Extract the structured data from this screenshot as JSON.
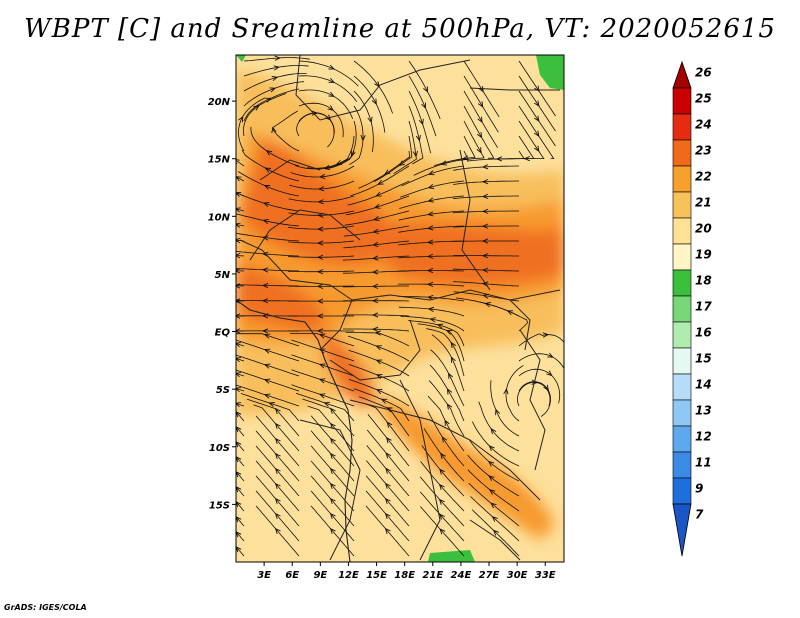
{
  "title": "WBPT [C] and Sreamline at 500hPa, VT: 2020052615",
  "credit": "GrADS: IGES/COLA",
  "map": {
    "lon_range": [
      0,
      35
    ],
    "lat_range": [
      -20,
      24
    ],
    "lon_ticks": [
      "3E",
      "6E",
      "9E",
      "12E",
      "15E",
      "18E",
      "21E",
      "24E",
      "27E",
      "30E",
      "33E"
    ],
    "lat_ticks": [
      "20N",
      "15N",
      "10N",
      "5N",
      "EQ",
      "5S",
      "10S",
      "15S"
    ],
    "field_colors": {
      "band_23": "#f07020",
      "band_22": "#f79a2e",
      "band_21": "#f8be5c",
      "band_20": "#fde09b",
      "band_17": "#3cbf3c"
    }
  },
  "colorbar": {
    "labels": [
      "26",
      "25",
      "24",
      "23",
      "22",
      "21",
      "20",
      "19",
      "18",
      "17",
      "16",
      "15",
      "14",
      "13",
      "12",
      "11",
      "9",
      "7"
    ],
    "colors": [
      "#a50000",
      "#c80000",
      "#e52b10",
      "#f06a1c",
      "#f6a02e",
      "#f8c25a",
      "#fde196",
      "#fff4c3",
      "#3cbf3c",
      "#76d876",
      "#b0ecb0",
      "#e6f8f2",
      "#b6dcf8",
      "#8ec8f4",
      "#5ea8ee",
      "#3a8ae6",
      "#1f6ede",
      "#1a56c8"
    ]
  }
}
